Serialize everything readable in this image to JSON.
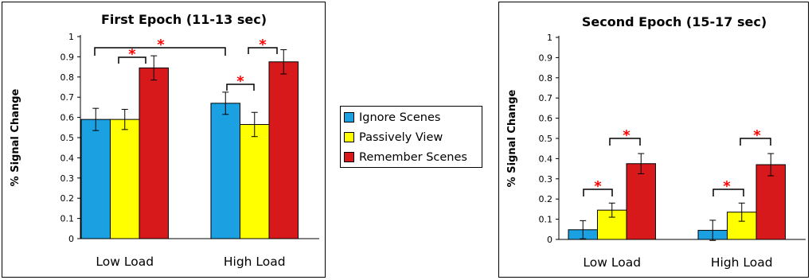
{
  "chart_data": [
    {
      "type": "bar",
      "title": "First Epoch (11-13 sec)",
      "xlabel": "",
      "ylabel": "% Signal Change",
      "ylim": [
        0,
        1
      ],
      "yticks": [
        "0",
        "0.1",
        "0.2",
        "0.3",
        "0.4",
        "0.5",
        "0.6",
        "0.7",
        "0.8",
        "0.9",
        "1"
      ],
      "categories": [
        "Low Load",
        "High Load"
      ],
      "series": [
        {
          "name": "Ignore Scenes",
          "values": [
            0.59,
            0.67
          ],
          "errors": [
            0.055,
            0.055
          ]
        },
        {
          "name": "Passively View",
          "values": [
            0.59,
            0.565
          ],
          "errors": [
            0.05,
            0.06
          ]
        },
        {
          "name": "Remember Scenes",
          "values": [
            0.845,
            0.875
          ],
          "errors": [
            0.06,
            0.06
          ]
        }
      ],
      "significance": [
        {
          "label": "*"
        },
        {
          "label": "*"
        },
        {
          "label": "*"
        },
        {
          "label": "*"
        }
      ],
      "grid": false,
      "legend": "right"
    },
    {
      "type": "bar",
      "title": "Second Epoch (15-17 sec)",
      "xlabel": "",
      "ylabel": "% Signal Change",
      "ylim": [
        0,
        1
      ],
      "yticks": [
        "0",
        "0.1",
        "0.2",
        "0.3",
        "0.4",
        "0.5",
        "0.6",
        "0.7",
        "0.8",
        "0.9",
        "1"
      ],
      "categories": [
        "Low Load",
        "High Load"
      ],
      "series": [
        {
          "name": "Ignore Scenes",
          "values": [
            0.048,
            0.045
          ],
          "errors": [
            0.045,
            0.05
          ]
        },
        {
          "name": "Passively View",
          "values": [
            0.145,
            0.135
          ],
          "errors": [
            0.035,
            0.045
          ]
        },
        {
          "name": "Remember Scenes",
          "values": [
            0.375,
            0.37
          ],
          "errors": [
            0.05,
            0.055
          ]
        }
      ],
      "significance": [
        {
          "label": "*"
        },
        {
          "label": "*"
        },
        {
          "label": "*"
        },
        {
          "label": "*"
        }
      ],
      "grid": false,
      "legend": "none"
    }
  ],
  "legend": {
    "items": [
      {
        "label": "Ignore Scenes",
        "color": "#1ba1e2"
      },
      {
        "label": "Passively View",
        "color": "#ffff00"
      },
      {
        "label": "Remember Scenes",
        "color": "#d7191c"
      }
    ]
  },
  "colors": {
    "series": [
      "#1ba1e2",
      "#ffff00",
      "#d7191c"
    ],
    "significance": "#ff0000",
    "axis": "#000000"
  }
}
